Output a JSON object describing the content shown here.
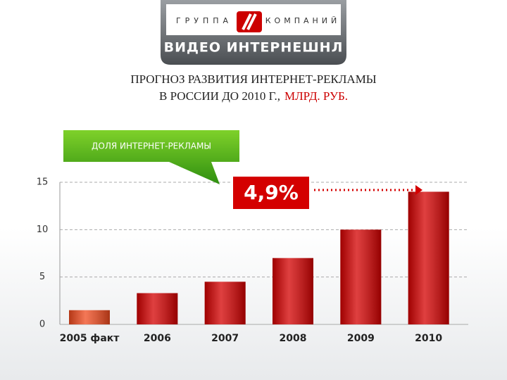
{
  "header": {
    "group": "ГРУППА",
    "companies": "КОМПАНИЙ",
    "brand": "ВИДЕО ИНТЕРНЕШНЛ"
  },
  "chart_data": {
    "type": "bar",
    "title": {
      "line1": "ПРОГНОЗ РАЗВИТИЯ ИНТЕРНЕТ-РЕКЛАМЫ",
      "line2": "В РОССИИ ДО 2010 Г.,",
      "unit": "МЛРД. РУБ."
    },
    "categories": [
      "2005 факт",
      "2006",
      "2007",
      "2008",
      "2009",
      "2010"
    ],
    "values": [
      1.5,
      3.3,
      4.5,
      7,
      10,
      14
    ],
    "colors": [
      "#f04a1e",
      "#d40000",
      "#d40000",
      "#d40000",
      "#d40000",
      "#d40000"
    ],
    "ylim": [
      0,
      15
    ],
    "yticks": [
      0,
      5,
      10,
      15
    ],
    "grid": true,
    "callout": "ДОЛЯ ИНТЕРНЕТ-РЕКЛАМЫ",
    "annotation": "4,9%"
  }
}
